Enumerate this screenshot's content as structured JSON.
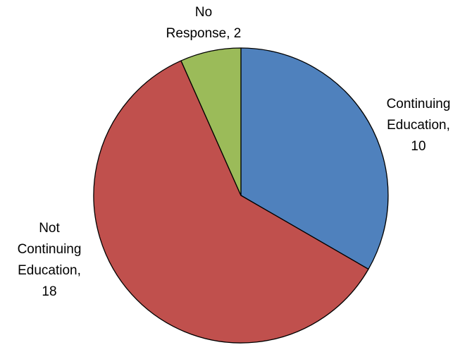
{
  "chart_data": {
    "type": "pie",
    "slices": [
      {
        "name": "Continuing Education",
        "value": 10,
        "color": "#4F81BD"
      },
      {
        "name": "Not Continuing Education",
        "value": 18,
        "color": "#C0504D"
      },
      {
        "name": "No Response",
        "value": 2,
        "color": "#9BBB59"
      }
    ],
    "data_labels": [
      {
        "slice": "Continuing Education",
        "lines": [
          "Continuing",
          "Education,",
          "10"
        ]
      },
      {
        "slice": "Not Continuing Education",
        "lines": [
          "Not",
          "Continuing",
          "Education,",
          "18"
        ]
      },
      {
        "slice": "No Response",
        "lines": [
          "No",
          "Response, 2"
        ]
      }
    ],
    "start_angle_deg": 0,
    "direction": "clockwise",
    "legend": "none"
  }
}
